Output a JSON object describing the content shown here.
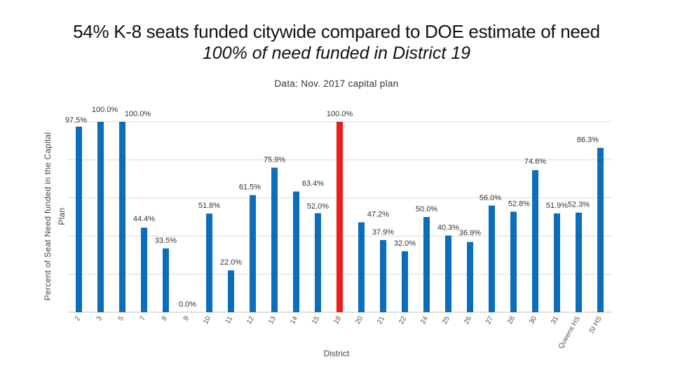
{
  "title": "54% K-8 seats funded citywide compared to DOE estimate of need",
  "subtitle": "100% of need funded in District 19",
  "source_note": "Data: Nov. 2017 capital plan",
  "colors": {
    "bar": "#0a6ebd",
    "highlight": "#ee1c1c",
    "grid": "#d9d9d9",
    "axis": "#bfbfbf"
  },
  "chart_data": {
    "type": "bar",
    "title": "54% K-8 seats funded citywide compared to DOE estimate of need",
    "subtitle": "100% of need funded in District 19",
    "xlabel": "District",
    "ylabel": "Percent of Seat Need funded in the Capital Plan",
    "ylim": [
      0,
      100
    ],
    "grid": true,
    "highlight_category": "19",
    "categories": [
      "2",
      "3",
      "5",
      "7",
      "8",
      "9",
      "10",
      "11",
      "12",
      "13",
      "14",
      "15",
      "19",
      "20",
      "21",
      "22",
      "24",
      "25",
      "26",
      "27",
      "28",
      "30",
      "31",
      "Queens HS",
      "SI HS"
    ],
    "values": [
      97.5,
      100.0,
      100.0,
      44.4,
      33.5,
      0.0,
      51.8,
      22.0,
      61.5,
      75.9,
      63.4,
      52.0,
      100.0,
      47.2,
      37.9,
      32.0,
      50.0,
      40.3,
      36.9,
      56.0,
      52.8,
      74.6,
      51.9,
      52.3,
      86.3
    ],
    "data_labels": [
      "97.5%",
      "100.0%",
      "100.0%",
      "44.4%",
      "33.5%",
      "0.0%",
      "51.8%",
      "22.0%",
      "61.5%",
      "75.9%",
      "63.4%",
      "52.0%",
      "100.0%",
      "47.2%",
      "37.9%",
      "32.0%",
      "50.0%",
      "40.3%",
      "36.9%",
      "56.0%",
      "52.8%",
      "74.6%",
      "51.9%",
      "52.3%",
      "86.3%"
    ]
  }
}
